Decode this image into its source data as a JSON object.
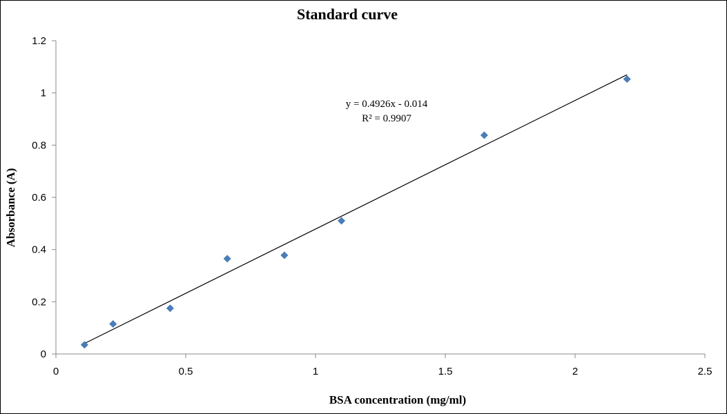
{
  "chart_data": {
    "type": "scatter",
    "title": "Standard curve",
    "xlabel": "BSA concentration (mg/ml)",
    "ylabel": "Absorbance (A)",
    "xlim": [
      0,
      2.5
    ],
    "ylim": [
      0,
      1.2
    ],
    "x_ticks": [
      0,
      0.5,
      1,
      1.5,
      2,
      2.5
    ],
    "x_tick_labels": [
      "0",
      "0.5",
      "1",
      "1.5",
      "2",
      "2.5"
    ],
    "y_ticks": [
      0,
      0.2,
      0.4,
      0.6,
      0.8,
      1,
      1.2
    ],
    "y_tick_labels": [
      "0",
      "0.2",
      "0.4",
      "0.6",
      "0.8",
      "1",
      "1.2"
    ],
    "grid": false,
    "legend": "none",
    "marker_color": "#4a7ebb",
    "line_color": "#000000",
    "series": [
      {
        "marker": "diamond",
        "x": [
          0.11,
          0.22,
          0.44,
          0.66,
          0.88,
          1.1,
          1.65,
          2.2
        ],
        "y": [
          0.035,
          0.115,
          0.175,
          0.365,
          0.378,
          0.51,
          0.838,
          1.053
        ]
      }
    ],
    "trendline": {
      "type": "linear",
      "slope": 0.4926,
      "intercept": -0.014,
      "x_range": [
        0.11,
        2.2
      ]
    },
    "annotations": {
      "equation": "y = 0.4926x - 0.014",
      "r_squared": "R² = 0.9907"
    }
  }
}
